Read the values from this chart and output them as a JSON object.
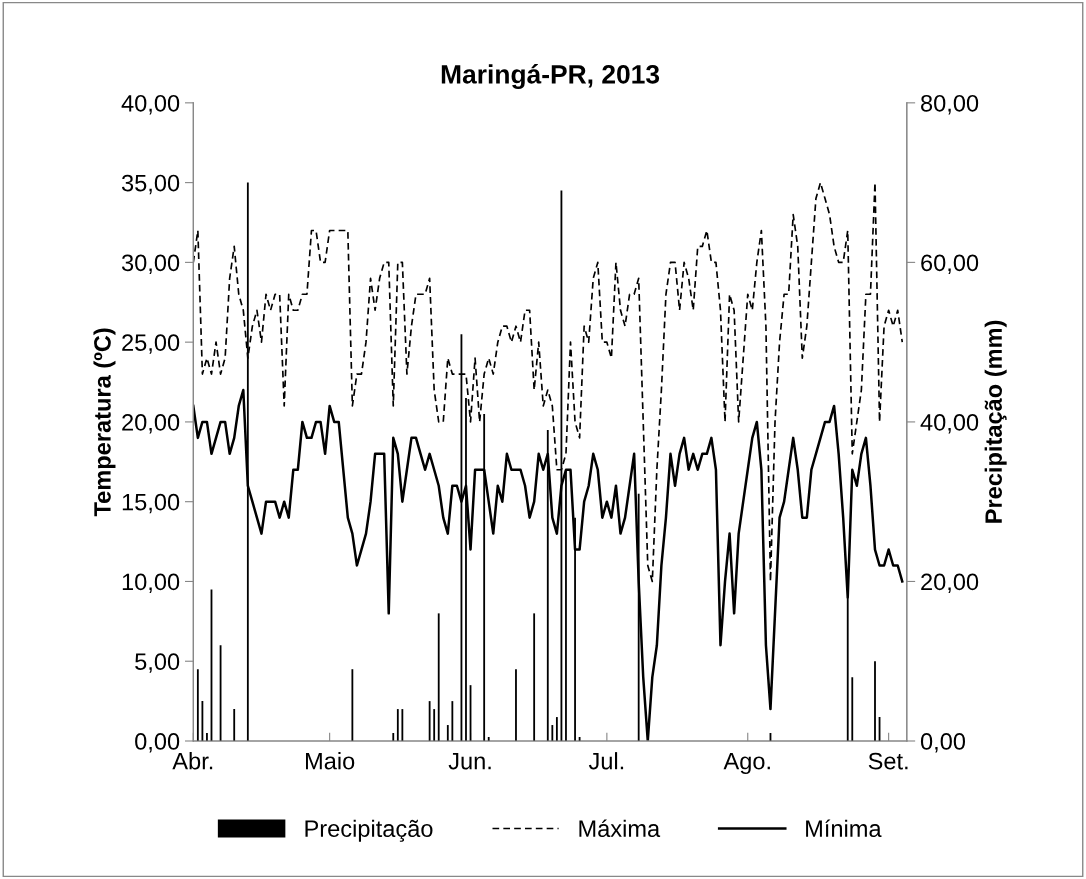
{
  "chart_data": {
    "type": "line",
    "title": "Maringá-PR, 2013",
    "ylabel": "Temperatura (ºC)",
    "y2label": "Precipitação (mm)",
    "x": [
      "2013-04-01",
      "2013-04-02",
      "2013-04-03",
      "2013-04-04",
      "2013-04-05",
      "2013-04-06",
      "2013-04-07",
      "2013-04-08",
      "2013-04-09",
      "2013-04-10",
      "2013-04-11",
      "2013-04-12",
      "2013-04-13",
      "2013-04-14",
      "2013-04-15",
      "2013-04-16",
      "2013-04-17",
      "2013-04-18",
      "2013-04-19",
      "2013-04-20",
      "2013-04-21",
      "2013-04-22",
      "2013-04-23",
      "2013-04-24",
      "2013-04-25",
      "2013-04-26",
      "2013-04-27",
      "2013-04-28",
      "2013-04-29",
      "2013-04-30",
      "2013-05-01",
      "2013-05-02",
      "2013-05-03",
      "2013-05-04",
      "2013-05-05",
      "2013-05-06",
      "2013-05-07",
      "2013-05-08",
      "2013-05-09",
      "2013-05-10",
      "2013-05-11",
      "2013-05-12",
      "2013-05-13",
      "2013-05-14",
      "2013-05-15",
      "2013-05-16",
      "2013-05-17",
      "2013-05-18",
      "2013-05-19",
      "2013-05-20",
      "2013-05-21",
      "2013-05-22",
      "2013-05-23",
      "2013-05-24",
      "2013-05-25",
      "2013-05-26",
      "2013-05-27",
      "2013-05-28",
      "2013-05-29",
      "2013-05-30",
      "2013-05-31",
      "2013-06-01",
      "2013-06-02",
      "2013-06-03",
      "2013-06-04",
      "2013-06-05",
      "2013-06-06",
      "2013-06-07",
      "2013-06-08",
      "2013-06-09",
      "2013-06-10",
      "2013-06-11",
      "2013-06-12",
      "2013-06-13",
      "2013-06-14",
      "2013-06-15",
      "2013-06-16",
      "2013-06-17",
      "2013-06-18",
      "2013-06-19",
      "2013-06-20",
      "2013-06-21",
      "2013-06-22",
      "2013-06-23",
      "2013-06-24",
      "2013-06-25",
      "2013-06-26",
      "2013-06-27",
      "2013-06-28",
      "2013-06-29",
      "2013-06-30",
      "2013-07-01",
      "2013-07-02",
      "2013-07-03",
      "2013-07-04",
      "2013-07-05",
      "2013-07-06",
      "2013-07-07",
      "2013-07-08",
      "2013-07-09",
      "2013-07-10",
      "2013-07-11",
      "2013-07-12",
      "2013-07-13",
      "2013-07-14",
      "2013-07-15",
      "2013-07-16",
      "2013-07-17",
      "2013-07-18",
      "2013-07-19",
      "2013-07-20",
      "2013-07-21",
      "2013-07-22",
      "2013-07-23",
      "2013-07-24",
      "2013-07-25",
      "2013-07-26",
      "2013-07-27",
      "2013-07-28",
      "2013-07-29",
      "2013-07-30",
      "2013-07-31",
      "2013-08-01",
      "2013-08-02",
      "2013-08-03",
      "2013-08-04",
      "2013-08-05",
      "2013-08-06",
      "2013-08-07",
      "2013-08-08",
      "2013-08-09",
      "2013-08-10",
      "2013-08-11",
      "2013-08-12",
      "2013-08-13",
      "2013-08-14",
      "2013-08-15",
      "2013-08-16",
      "2013-08-17",
      "2013-08-18",
      "2013-08-19",
      "2013-08-20",
      "2013-08-21",
      "2013-08-22",
      "2013-08-23",
      "2013-08-24",
      "2013-08-25",
      "2013-08-26",
      "2013-08-27",
      "2013-08-28",
      "2013-08-29",
      "2013-08-30",
      "2013-08-31",
      "2013-09-01",
      "2013-09-02",
      "2013-09-03",
      "2013-09-04"
    ],
    "series": [
      {
        "name": "Precipitação",
        "type": "bar",
        "axis": "y2",
        "color": "#000000",
        "values": [
          null,
          9,
          5,
          1,
          19,
          null,
          12,
          null,
          null,
          4,
          null,
          null,
          70,
          null,
          null,
          null,
          null,
          null,
          null,
          null,
          null,
          null,
          null,
          null,
          null,
          null,
          null,
          null,
          null,
          null,
          null,
          null,
          null,
          null,
          null,
          9,
          null,
          null,
          null,
          null,
          null,
          null,
          null,
          null,
          1,
          4,
          4,
          null,
          null,
          null,
          null,
          null,
          5,
          4,
          16,
          null,
          2,
          5,
          null,
          51,
          43,
          7,
          null,
          null,
          41,
          0.5,
          null,
          null,
          null,
          null,
          null,
          9,
          null,
          null,
          null,
          16,
          null,
          null,
          39,
          2,
          3,
          69,
          34,
          null,
          28,
          0.5,
          null,
          null,
          null,
          null,
          null,
          null,
          null,
          null,
          null,
          null,
          null,
          null,
          31,
          null,
          null,
          null,
          null,
          null,
          null,
          null,
          null,
          null,
          null,
          null,
          null,
          null,
          null,
          null,
          null,
          null,
          null,
          null,
          null,
          null,
          null,
          null,
          null,
          null,
          null,
          null,
          null,
          1,
          null,
          null,
          null,
          null,
          null,
          null,
          null,
          null,
          null,
          null,
          null,
          null,
          null,
          null,
          null,
          null,
          18,
          8,
          null,
          null,
          null,
          null,
          10,
          3,
          null,
          null,
          null,
          null,
          null
        ]
      },
      {
        "name": "Máxima",
        "line_style": "dashed",
        "color": "#000000",
        "values": [
          30,
          32,
          23,
          24,
          23,
          25,
          23,
          24,
          29,
          31,
          28,
          27,
          24,
          26,
          27,
          25,
          28,
          27,
          28,
          28,
          21,
          28,
          27,
          27,
          28,
          28,
          32,
          32,
          30,
          30,
          32,
          32,
          32,
          32,
          32,
          21,
          23,
          23,
          25,
          29,
          27,
          29,
          30,
          30,
          21,
          30,
          30,
          23,
          26,
          28,
          28,
          28,
          29,
          22,
          20,
          20,
          24,
          23,
          23,
          23,
          23,
          20,
          24,
          20,
          23,
          24,
          23,
          25,
          26,
          26,
          25,
          26,
          25,
          27,
          27,
          22,
          25,
          21,
          22,
          21,
          17,
          17,
          18,
          25,
          20,
          19,
          26,
          25,
          29,
          30,
          25,
          25,
          24,
          30,
          27,
          26,
          28,
          28,
          29,
          20,
          11,
          10,
          17,
          22,
          28,
          30,
          30,
          27,
          30,
          29,
          27,
          31,
          31,
          32,
          30,
          30,
          27,
          20,
          28,
          27,
          20,
          24,
          28,
          27,
          30,
          32,
          26,
          10,
          20,
          25,
          28,
          28,
          33,
          31,
          24,
          26,
          30,
          34,
          35,
          34,
          33,
          31,
          30,
          30,
          32,
          18,
          20,
          22,
          28,
          28,
          35,
          20,
          26,
          27,
          26,
          27,
          25
        ]
      },
      {
        "name": "Mínima",
        "line_style": "solid",
        "color": "#000000",
        "values": [
          21,
          19,
          20,
          20,
          18,
          19,
          20,
          20,
          18,
          19,
          21,
          22,
          16,
          15,
          14,
          13,
          15,
          15,
          15,
          14,
          15,
          14,
          17,
          17,
          20,
          19,
          19,
          20,
          20,
          18,
          21,
          20,
          20,
          17,
          14,
          13,
          11,
          12,
          13,
          15,
          18,
          18,
          18,
          8,
          19,
          18,
          15,
          17,
          19,
          19,
          18,
          17,
          18,
          17,
          16,
          14,
          13,
          16,
          16,
          15,
          16,
          12,
          17,
          17,
          17,
          15,
          13,
          16,
          15,
          18,
          17,
          17,
          17,
          16,
          14,
          15,
          18,
          17,
          18,
          14,
          13,
          16,
          17,
          17,
          12,
          12,
          15,
          16,
          18,
          17,
          14,
          15,
          14,
          16,
          13,
          14,
          16,
          18,
          10,
          4,
          0,
          4,
          6,
          11,
          14,
          18,
          16,
          18,
          19,
          17,
          18,
          17,
          18,
          18,
          19,
          17,
          6,
          10,
          13,
          8,
          13,
          15,
          17,
          19,
          20,
          17,
          6,
          2,
          8,
          14,
          15,
          17,
          19,
          17,
          14,
          14,
          17,
          18,
          19,
          20,
          20,
          21,
          18,
          14,
          9,
          17,
          16,
          18,
          19,
          16,
          12,
          11,
          11,
          12,
          11,
          11,
          10
        ]
      }
    ],
    "xlim": [
      "2013-04-01",
      "2013-09-05"
    ],
    "xticks": [
      {
        "value": "2013-04-01",
        "label": "Abr."
      },
      {
        "value": "2013-05-01",
        "label": "Maio"
      },
      {
        "value": "2013-06-01",
        "label": "Jun."
      },
      {
        "value": "2013-07-01",
        "label": "Jul."
      },
      {
        "value": "2013-08-01",
        "label": "Ago."
      },
      {
        "value": "2013-09-01",
        "label": "Set."
      }
    ],
    "ylim": [
      0,
      40
    ],
    "yticks": [
      {
        "value": 0,
        "label": "0,00"
      },
      {
        "value": 5,
        "label": "5,00"
      },
      {
        "value": 10,
        "label": "10,00"
      },
      {
        "value": 15,
        "label": "15,00"
      },
      {
        "value": 20,
        "label": "20,00"
      },
      {
        "value": 25,
        "label": "25,00"
      },
      {
        "value": 30,
        "label": "30,00"
      },
      {
        "value": 35,
        "label": "35,00"
      },
      {
        "value": 40,
        "label": "40,00"
      }
    ],
    "y2lim": [
      0,
      80
    ],
    "y2ticks": [
      {
        "value": 0,
        "label": "0,00"
      },
      {
        "value": 20,
        "label": "20,00"
      },
      {
        "value": 40,
        "label": "40,00"
      },
      {
        "value": 60,
        "label": "60,00"
      },
      {
        "value": 80,
        "label": "80,00"
      }
    ],
    "legend": "bottom",
    "grid": false
  }
}
